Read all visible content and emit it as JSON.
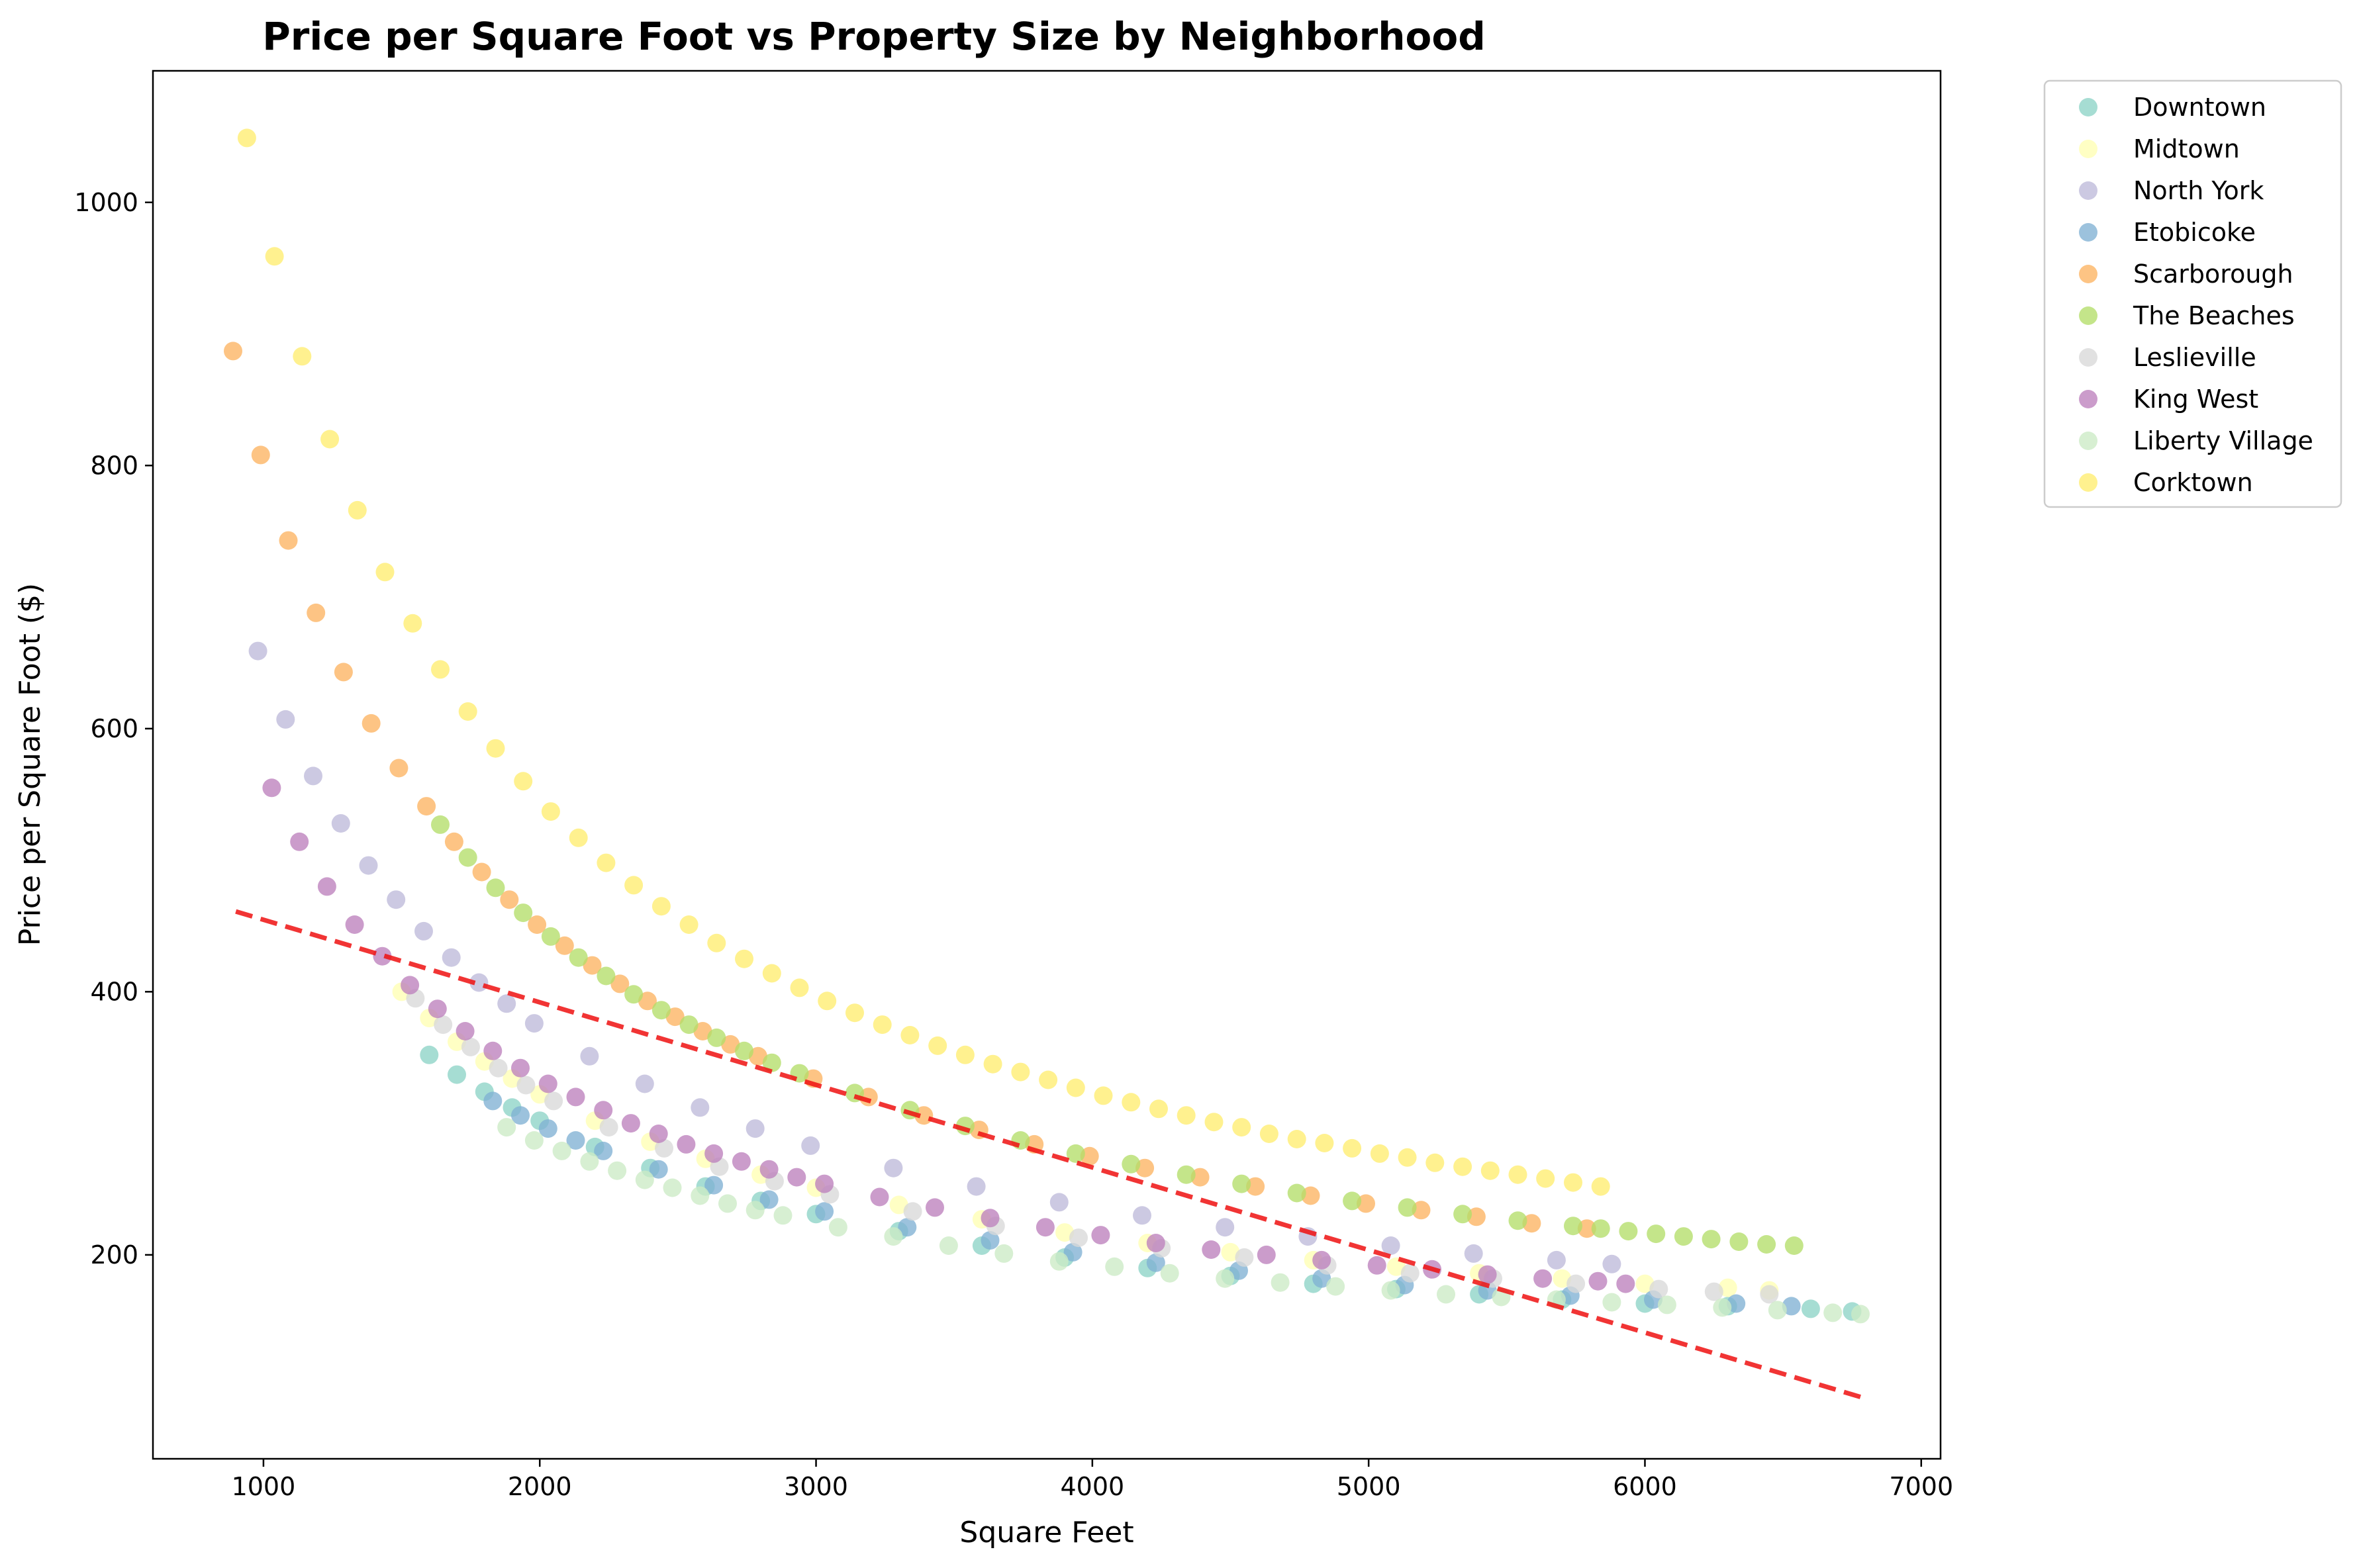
{
  "chart_data": {
    "type": "scatter",
    "title": "Price per Square Foot vs Property Size by Neighborhood",
    "xlabel": "Square Feet",
    "ylabel": "Price per Square Foot ($)",
    "xlim": [
      600,
      7070
    ],
    "ylim": [
      45,
      1100
    ],
    "xticks": [
      1000,
      2000,
      3000,
      4000,
      5000,
      6000,
      7000
    ],
    "yticks": [
      200,
      400,
      600,
      800,
      1000
    ],
    "grid": false,
    "legend_position": "outside-top-right",
    "series": [
      {
        "name": "Downtown",
        "color": "#8dd3c7",
        "points": [
          [
            1600,
            352
          ],
          [
            1700,
            337
          ],
          [
            1800,
            324
          ],
          [
            1900,
            312
          ],
          [
            2000,
            302
          ],
          [
            2200,
            282
          ],
          [
            2400,
            266
          ],
          [
            2600,
            252
          ],
          [
            2800,
            241
          ],
          [
            3000,
            231
          ],
          [
            3300,
            218
          ],
          [
            3600,
            207
          ],
          [
            3900,
            198
          ],
          [
            4200,
            190
          ],
          [
            4500,
            184
          ],
          [
            4800,
            178
          ],
          [
            5100,
            174
          ],
          [
            5400,
            170
          ],
          [
            5700,
            166
          ],
          [
            6000,
            163
          ],
          [
            6300,
            161
          ],
          [
            6600,
            159
          ],
          [
            6750,
            157
          ]
        ]
      },
      {
        "name": "Midtown",
        "color": "#ffffb3",
        "points": [
          [
            1500,
            400
          ],
          [
            1600,
            380
          ],
          [
            1700,
            362
          ],
          [
            1800,
            347
          ],
          [
            1900,
            334
          ],
          [
            2000,
            322
          ],
          [
            2200,
            302
          ],
          [
            2400,
            286
          ],
          [
            2600,
            273
          ],
          [
            2800,
            261
          ],
          [
            3000,
            251
          ],
          [
            3300,
            238
          ],
          [
            3600,
            227
          ],
          [
            3900,
            217
          ],
          [
            4200,
            209
          ],
          [
            4500,
            202
          ],
          [
            4800,
            196
          ],
          [
            5100,
            191
          ],
          [
            5400,
            186
          ],
          [
            5700,
            182
          ],
          [
            6000,
            178
          ],
          [
            6300,
            175
          ],
          [
            6450,
            173
          ]
        ]
      },
      {
        "name": "North York",
        "color": "#bebada",
        "points": [
          [
            980,
            659
          ],
          [
            1080,
            607
          ],
          [
            1180,
            564
          ],
          [
            1280,
            528
          ],
          [
            1380,
            496
          ],
          [
            1480,
            470
          ],
          [
            1580,
            446
          ],
          [
            1680,
            426
          ],
          [
            1780,
            407
          ],
          [
            1880,
            391
          ],
          [
            1980,
            376
          ],
          [
            2180,
            351
          ],
          [
            2380,
            330
          ],
          [
            2580,
            312
          ],
          [
            2780,
            296
          ],
          [
            2980,
            283
          ],
          [
            3280,
            266
          ],
          [
            3580,
            252
          ],
          [
            3880,
            240
          ],
          [
            4180,
            230
          ],
          [
            4480,
            221
          ],
          [
            4780,
            214
          ],
          [
            5080,
            207
          ],
          [
            5380,
            201
          ],
          [
            5680,
            196
          ],
          [
            5880,
            193
          ]
        ]
      },
      {
        "name": "Etobicoke",
        "color": "#80b1d3",
        "points": [
          [
            1830,
            317
          ],
          [
            1930,
            306
          ],
          [
            2030,
            296
          ],
          [
            2130,
            287
          ],
          [
            2230,
            279
          ],
          [
            2430,
            265
          ],
          [
            2630,
            253
          ],
          [
            2830,
            242
          ],
          [
            3030,
            233
          ],
          [
            3330,
            221
          ],
          [
            3630,
            211
          ],
          [
            3930,
            202
          ],
          [
            4230,
            194
          ],
          [
            4530,
            188
          ],
          [
            4830,
            182
          ],
          [
            5130,
            177
          ],
          [
            5430,
            173
          ],
          [
            5730,
            169
          ],
          [
            6030,
            166
          ],
          [
            6330,
            163
          ],
          [
            6530,
            161
          ]
        ]
      },
      {
        "name": "Scarborough",
        "color": "#fdb462",
        "points": [
          [
            890,
            887
          ],
          [
            990,
            808
          ],
          [
            1090,
            743
          ],
          [
            1190,
            688
          ],
          [
            1290,
            643
          ],
          [
            1390,
            604
          ],
          [
            1490,
            570
          ],
          [
            1590,
            541
          ],
          [
            1690,
            514
          ],
          [
            1790,
            491
          ],
          [
            1890,
            470
          ],
          [
            1990,
            451
          ],
          [
            2090,
            435
          ],
          [
            2190,
            420
          ],
          [
            2290,
            406
          ],
          [
            2390,
            393
          ],
          [
            2490,
            381
          ],
          [
            2590,
            370
          ],
          [
            2690,
            360
          ],
          [
            2790,
            351
          ],
          [
            2990,
            334
          ],
          [
            3190,
            320
          ],
          [
            3390,
            306
          ],
          [
            3590,
            295
          ],
          [
            3790,
            284
          ],
          [
            3990,
            275
          ],
          [
            4190,
            266
          ],
          [
            4390,
            259
          ],
          [
            4590,
            252
          ],
          [
            4790,
            245
          ],
          [
            4990,
            239
          ],
          [
            5190,
            234
          ],
          [
            5390,
            229
          ],
          [
            5590,
            224
          ],
          [
            5790,
            220
          ]
        ]
      },
      {
        "name": "The Beaches",
        "color": "#b3de69",
        "points": [
          [
            1640,
            527
          ],
          [
            1740,
            502
          ],
          [
            1840,
            479
          ],
          [
            1940,
            460
          ],
          [
            2040,
            442
          ],
          [
            2140,
            426
          ],
          [
            2240,
            412
          ],
          [
            2340,
            398
          ],
          [
            2440,
            386
          ],
          [
            2540,
            375
          ],
          [
            2640,
            365
          ],
          [
            2740,
            355
          ],
          [
            2840,
            346
          ],
          [
            2940,
            338
          ],
          [
            3140,
            323
          ],
          [
            3340,
            310
          ],
          [
            3540,
            298
          ],
          [
            3740,
            287
          ],
          [
            3940,
            277
          ],
          [
            4140,
            269
          ],
          [
            4340,
            261
          ],
          [
            4540,
            254
          ],
          [
            4740,
            247
          ],
          [
            4940,
            241
          ],
          [
            5140,
            236
          ],
          [
            5340,
            231
          ],
          [
            5540,
            226
          ],
          [
            5740,
            222
          ],
          [
            5840,
            220
          ],
          [
            5940,
            218
          ],
          [
            6040,
            216
          ],
          [
            6140,
            214
          ],
          [
            6240,
            212
          ],
          [
            6340,
            210
          ],
          [
            6440,
            208
          ],
          [
            6540,
            207
          ]
        ]
      },
      {
        "name": "Leslieville",
        "color": "#d9d9d9",
        "points": [
          [
            1550,
            395
          ],
          [
            1650,
            375
          ],
          [
            1750,
            358
          ],
          [
            1850,
            342
          ],
          [
            1950,
            329
          ],
          [
            2050,
            317
          ],
          [
            2250,
            297
          ],
          [
            2450,
            281
          ],
          [
            2650,
            267
          ],
          [
            2850,
            256
          ],
          [
            3050,
            246
          ],
          [
            3350,
            233
          ],
          [
            3650,
            222
          ],
          [
            3950,
            213
          ],
          [
            4250,
            205
          ],
          [
            4550,
            198
          ],
          [
            4850,
            192
          ],
          [
            5150,
            186
          ],
          [
            5450,
            182
          ],
          [
            5750,
            178
          ],
          [
            6050,
            174
          ],
          [
            6250,
            172
          ],
          [
            6450,
            170
          ]
        ]
      },
      {
        "name": "King West",
        "color": "#bc80bd",
        "points": [
          [
            1030,
            555
          ],
          [
            1130,
            514
          ],
          [
            1230,
            480
          ],
          [
            1330,
            451
          ],
          [
            1430,
            427
          ],
          [
            1530,
            405
          ],
          [
            1630,
            387
          ],
          [
            1730,
            370
          ],
          [
            1830,
            355
          ],
          [
            1930,
            342
          ],
          [
            2030,
            330
          ],
          [
            2130,
            320
          ],
          [
            2230,
            310
          ],
          [
            2330,
            300
          ],
          [
            2430,
            292
          ],
          [
            2530,
            284
          ],
          [
            2630,
            277
          ],
          [
            2730,
            271
          ],
          [
            2830,
            265
          ],
          [
            2930,
            259
          ],
          [
            3030,
            254
          ],
          [
            3230,
            244
          ],
          [
            3430,
            236
          ],
          [
            3630,
            228
          ],
          [
            3830,
            221
          ],
          [
            4030,
            215
          ],
          [
            4230,
            209
          ],
          [
            4430,
            204
          ],
          [
            4630,
            200
          ],
          [
            4830,
            196
          ],
          [
            5030,
            192
          ],
          [
            5230,
            189
          ],
          [
            5430,
            185
          ],
          [
            5630,
            182
          ],
          [
            5830,
            180
          ],
          [
            5930,
            178
          ]
        ]
      },
      {
        "name": "Liberty Village",
        "color": "#ccebc5",
        "points": [
          [
            1880,
            297
          ],
          [
            1980,
            287
          ],
          [
            2080,
            279
          ],
          [
            2180,
            271
          ],
          [
            2280,
            264
          ],
          [
            2380,
            257
          ],
          [
            2480,
            251
          ],
          [
            2580,
            245
          ],
          [
            2680,
            239
          ],
          [
            2780,
            234
          ],
          [
            2880,
            230
          ],
          [
            3080,
            221
          ],
          [
            3280,
            214
          ],
          [
            3480,
            207
          ],
          [
            3680,
            201
          ],
          [
            3880,
            195
          ],
          [
            4080,
            191
          ],
          [
            4280,
            186
          ],
          [
            4480,
            182
          ],
          [
            4680,
            179
          ],
          [
            4880,
            176
          ],
          [
            5080,
            173
          ],
          [
            5280,
            170
          ],
          [
            5480,
            168
          ],
          [
            5680,
            166
          ],
          [
            5880,
            164
          ],
          [
            6080,
            162
          ],
          [
            6280,
            160
          ],
          [
            6480,
            158
          ],
          [
            6680,
            156
          ],
          [
            6780,
            155
          ]
        ]
      },
      {
        "name": "Corktown",
        "color": "#ffed6f",
        "points": [
          [
            940,
            1049
          ],
          [
            1040,
            959
          ],
          [
            1140,
            883
          ],
          [
            1240,
            820
          ],
          [
            1340,
            766
          ],
          [
            1440,
            719
          ],
          [
            1540,
            680
          ],
          [
            1640,
            645
          ],
          [
            1740,
            613
          ],
          [
            1840,
            585
          ],
          [
            1940,
            560
          ],
          [
            2040,
            537
          ],
          [
            2140,
            517
          ],
          [
            2240,
            498
          ],
          [
            2340,
            481
          ],
          [
            2440,
            465
          ],
          [
            2540,
            451
          ],
          [
            2640,
            437
          ],
          [
            2740,
            425
          ],
          [
            2840,
            414
          ],
          [
            2940,
            403
          ],
          [
            3040,
            393
          ],
          [
            3140,
            384
          ],
          [
            3240,
            375
          ],
          [
            3340,
            367
          ],
          [
            3440,
            359
          ],
          [
            3540,
            352
          ],
          [
            3640,
            345
          ],
          [
            3740,
            339
          ],
          [
            3840,
            333
          ],
          [
            3940,
            327
          ],
          [
            4040,
            321
          ],
          [
            4140,
            316
          ],
          [
            4240,
            311
          ],
          [
            4340,
            306
          ],
          [
            4440,
            301
          ],
          [
            4540,
            297
          ],
          [
            4640,
            292
          ],
          [
            4740,
            288
          ],
          [
            4840,
            285
          ],
          [
            4940,
            281
          ],
          [
            5040,
            277
          ],
          [
            5140,
            274
          ],
          [
            5240,
            270
          ],
          [
            5340,
            267
          ],
          [
            5440,
            264
          ],
          [
            5540,
            261
          ],
          [
            5640,
            258
          ],
          [
            5740,
            255
          ],
          [
            5840,
            252
          ]
        ]
      }
    ],
    "trend_line": {
      "color": "#ee1111",
      "style": "dashed",
      "x": [
        900,
        6780
      ],
      "y": [
        461,
        92
      ]
    }
  }
}
